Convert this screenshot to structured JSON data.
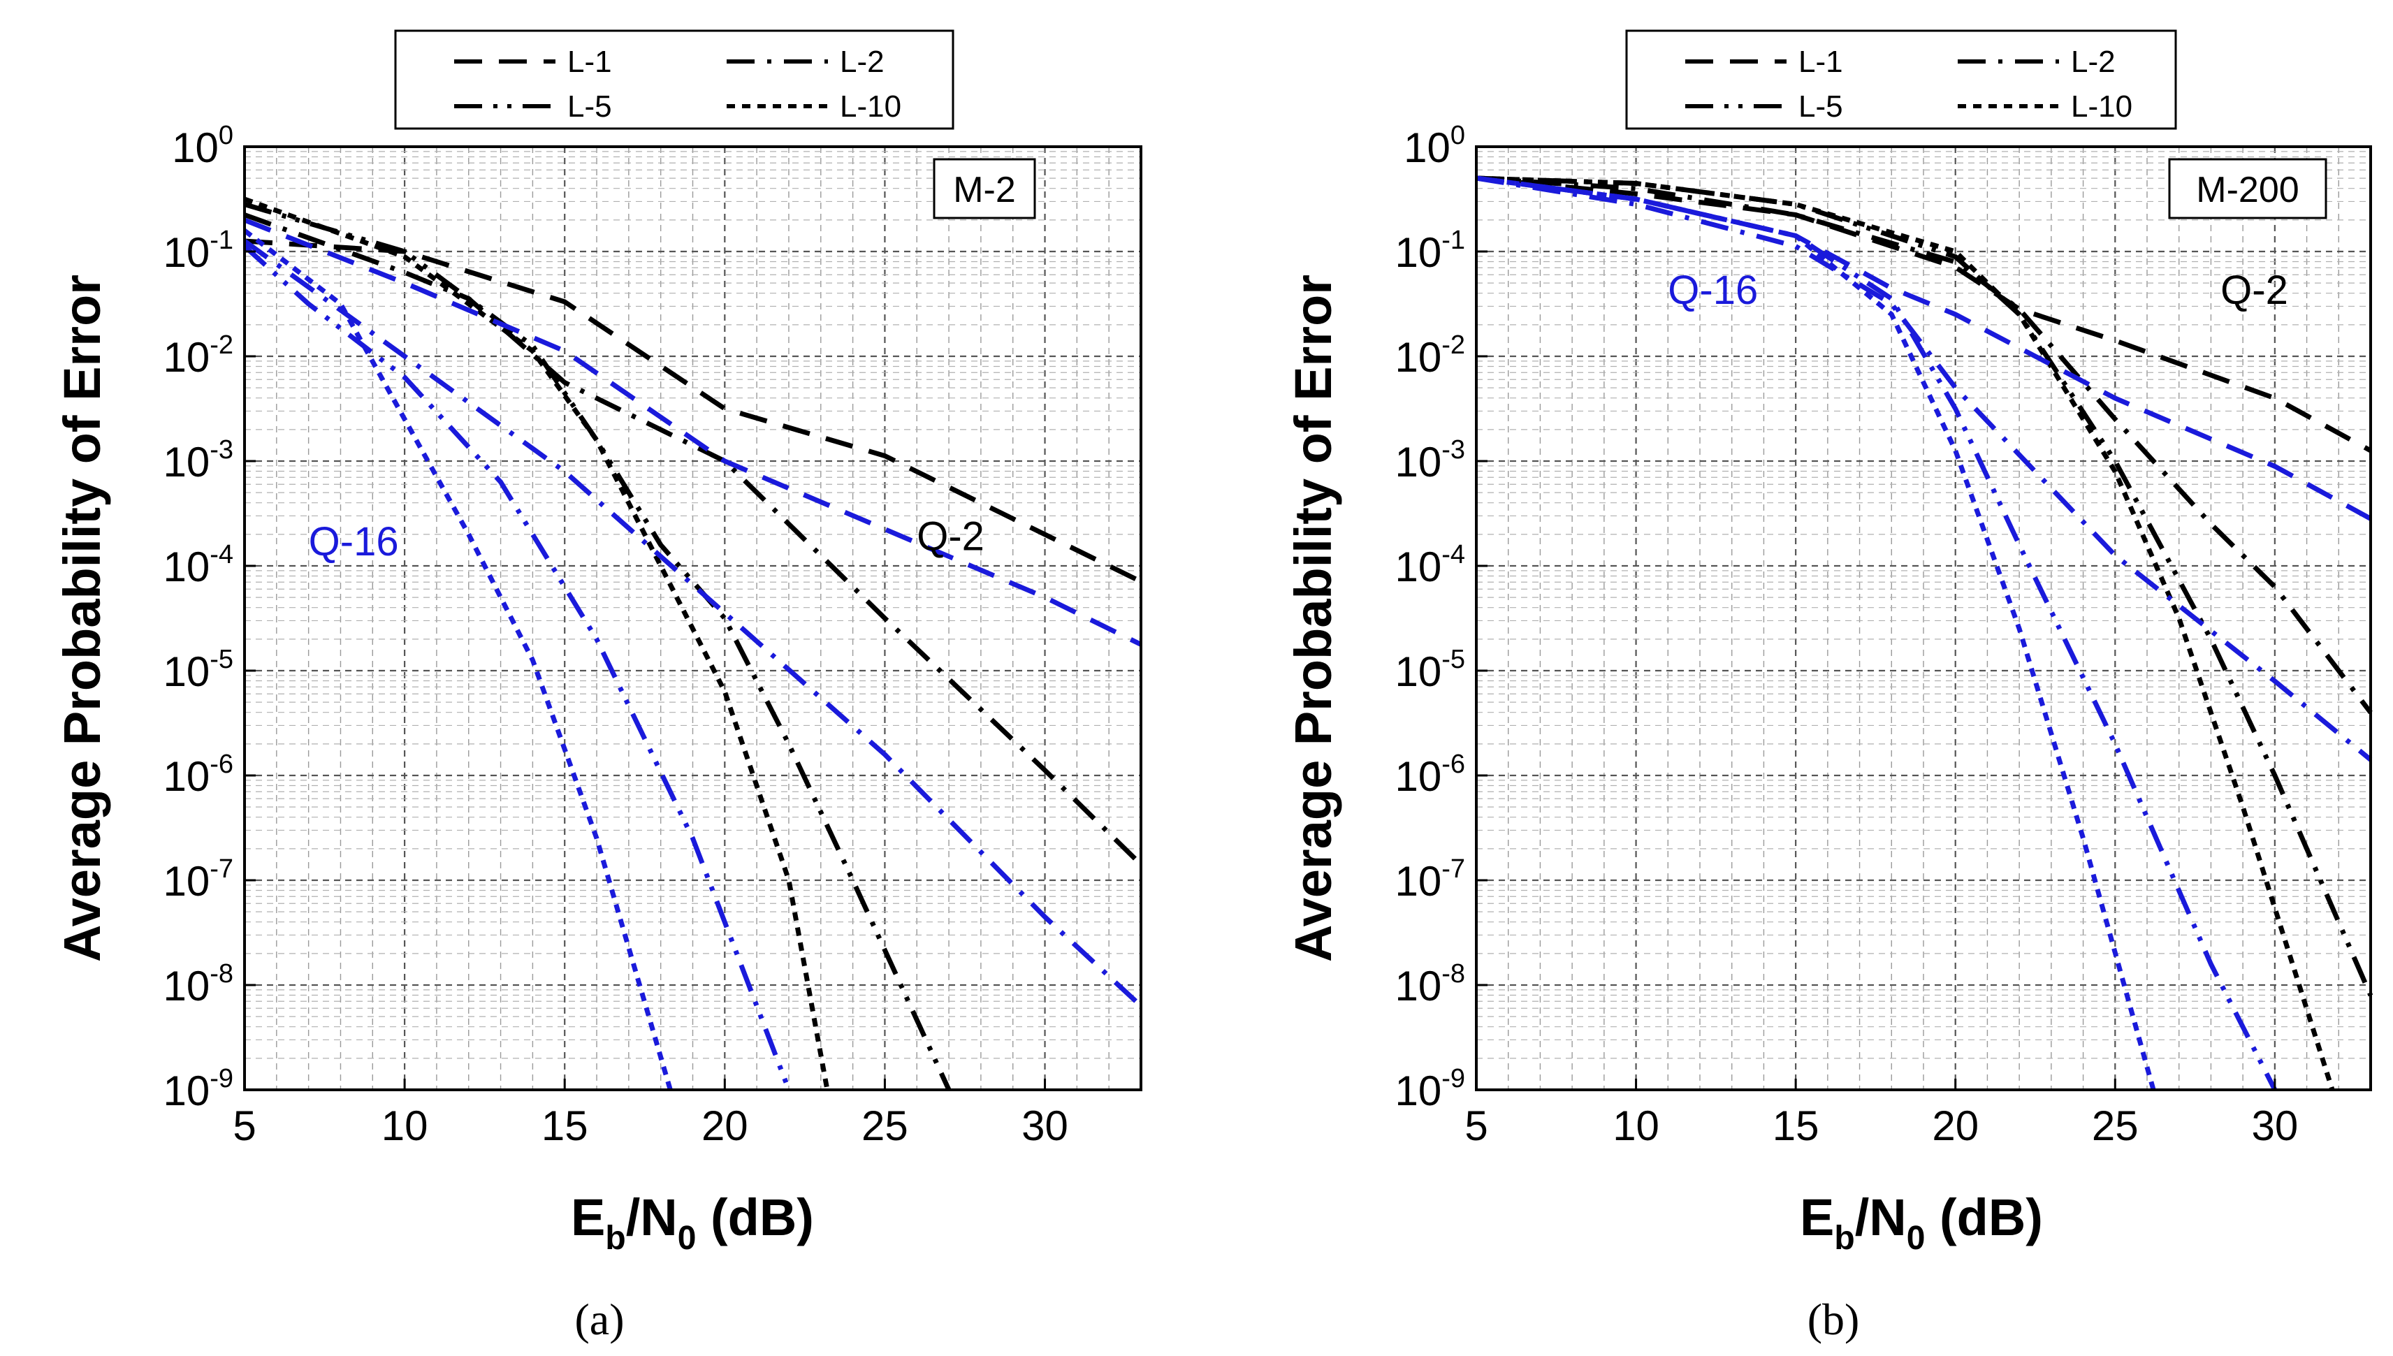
{
  "chart_data": [
    {
      "type": "line",
      "panel_caption": "(a)",
      "box_label": "M-2",
      "xlabel_main": "E",
      "xlabel_sub1": "b",
      "xlabel_mid": "/N",
      "xlabel_sub2": "0",
      "xlabel_tail": " (dB)",
      "ylabel": "Average Probability of Error",
      "xlim": [
        5,
        33
      ],
      "ylim_exp": [
        -9,
        0
      ],
      "x_ticks": [
        "5",
        "10",
        "15",
        "20",
        "25",
        "30"
      ],
      "y_tick_base": "10",
      "y_tick_exps": [
        "0",
        "-1",
        "-2",
        "-3",
        "-4",
        "-5",
        "-6",
        "-7",
        "-8",
        "-9"
      ],
      "legend": [
        {
          "label": "L-1",
          "style": "dash"
        },
        {
          "label": "L-2",
          "style": "dashdot"
        },
        {
          "label": "L-5",
          "style": "dashdotdot"
        },
        {
          "label": "L-10",
          "style": "dot"
        }
      ],
      "annotations": [
        {
          "text": "Q-16",
          "color": "#1a1adb",
          "x": 7.0,
          "y_exp": -3.9
        },
        {
          "text": "Q-2",
          "color": "#000000",
          "x": 26.0,
          "y_exp": -3.85
        }
      ],
      "series": [
        {
          "name": "Q-2 L-1",
          "color": "#000000",
          "style": "dash",
          "x": [
            5,
            10,
            15,
            20,
            25,
            30,
            33
          ],
          "y_exp": [
            -0.9,
            -1.0,
            -1.48,
            -2.5,
            -2.95,
            -3.7,
            -4.15
          ]
        },
        {
          "name": "Q-2 L-2",
          "color": "#000000",
          "style": "dashdot",
          "x": [
            5,
            10,
            12,
            15,
            20,
            25,
            30,
            33
          ],
          "y_exp": [
            -0.65,
            -1.2,
            -1.45,
            -2.25,
            -3.0,
            -4.5,
            -5.95,
            -6.85
          ]
        },
        {
          "name": "Q-2 L-5",
          "color": "#000000",
          "style": "dashdotdot",
          "x": [
            5,
            10,
            14,
            16,
            18,
            20,
            22,
            24,
            27
          ],
          "y_exp": [
            -0.55,
            -1.0,
            -1.9,
            -2.8,
            -3.8,
            -4.5,
            -5.7,
            -7.0,
            -9.0
          ]
        },
        {
          "name": "Q-2 L-10",
          "color": "#000000",
          "style": "dot",
          "x": [
            5,
            10,
            14,
            16,
            18,
            20,
            22,
            23.2
          ],
          "y_exp": [
            -0.5,
            -1.05,
            -1.95,
            -2.8,
            -4.0,
            -5.2,
            -7.0,
            -9.0
          ]
        },
        {
          "name": "Q-16 L-1",
          "color": "#1a1adb",
          "style": "dash",
          "x": [
            5,
            10,
            15,
            20,
            25,
            30,
            33
          ],
          "y_exp": [
            -0.7,
            -1.3,
            -1.95,
            -3.0,
            -3.65,
            -4.3,
            -4.75
          ]
        },
        {
          "name": "Q-16 L-2",
          "color": "#1a1adb",
          "style": "dashdot",
          "x": [
            5,
            10,
            15,
            20,
            25,
            30,
            33
          ],
          "y_exp": [
            -0.9,
            -2.0,
            -3.1,
            -4.45,
            -5.8,
            -7.35,
            -8.2
          ]
        },
        {
          "name": "Q-16 L-5",
          "color": "#1a1adb",
          "style": "dashdotdot",
          "x": [
            5,
            7,
            10,
            13,
            16,
            19,
            22
          ],
          "y_exp": [
            -0.95,
            -1.5,
            -2.2,
            -3.2,
            -4.7,
            -6.6,
            -9.0
          ]
        },
        {
          "name": "Q-16 L-10",
          "color": "#1a1adb",
          "style": "dot",
          "x": [
            5,
            8,
            10,
            12,
            14,
            16,
            18.3
          ],
          "y_exp": [
            -0.8,
            -1.5,
            -2.6,
            -3.7,
            -4.9,
            -6.6,
            -9.0
          ]
        }
      ]
    },
    {
      "type": "line",
      "panel_caption": "(b)",
      "box_label": "M-200",
      "xlabel_main": "E",
      "xlabel_sub1": "b",
      "xlabel_mid": "/N",
      "xlabel_sub2": "0",
      "xlabel_tail": " (dB)",
      "ylabel": "Average Probability of Error",
      "xlim": [
        5,
        33
      ],
      "ylim_exp": [
        -9,
        0
      ],
      "x_ticks": [
        "5",
        "10",
        "15",
        "20",
        "25",
        "30"
      ],
      "y_tick_base": "10",
      "y_tick_exps": [
        "0",
        "-1",
        "-2",
        "-3",
        "-4",
        "-5",
        "-6",
        "-7",
        "-8",
        "-9"
      ],
      "legend": [
        {
          "label": "L-1",
          "style": "dash"
        },
        {
          "label": "L-2",
          "style": "dashdot"
        },
        {
          "label": "L-5",
          "style": "dashdotdot"
        },
        {
          "label": "L-10",
          "style": "dot"
        }
      ],
      "annotations": [
        {
          "text": "Q-16",
          "color": "#1a1adb",
          "x": 11.0,
          "y_exp": -1.5
        },
        {
          "text": "Q-2",
          "color": "#000000",
          "x": 28.3,
          "y_exp": -1.5
        }
      ],
      "series": [
        {
          "name": "Q-2 L-1",
          "color": "#000000",
          "style": "dash",
          "x": [
            5,
            10,
            15,
            20,
            22,
            25,
            30,
            33
          ],
          "y_exp": [
            -0.3,
            -0.45,
            -0.65,
            -1.15,
            -1.55,
            -1.85,
            -2.4,
            -2.9
          ]
        },
        {
          "name": "Q-2 L-2",
          "color": "#000000",
          "style": "dashdot",
          "x": [
            5,
            10,
            15,
            20,
            22,
            25,
            28,
            30,
            33
          ],
          "y_exp": [
            -0.3,
            -0.4,
            -0.65,
            -1.1,
            -1.55,
            -2.6,
            -3.6,
            -4.2,
            -5.4
          ]
        },
        {
          "name": "Q-2 L-5",
          "color": "#000000",
          "style": "dashdotdot",
          "x": [
            5,
            10,
            15,
            20,
            22,
            25,
            28,
            30,
            33
          ],
          "y_exp": [
            -0.3,
            -0.35,
            -0.55,
            -1.05,
            -1.6,
            -3.0,
            -4.7,
            -6.0,
            -8.1
          ]
        },
        {
          "name": "Q-2 L-10",
          "color": "#000000",
          "style": "dot",
          "x": [
            5,
            10,
            15,
            20,
            22,
            25,
            27,
            29,
            31.8
          ],
          "y_exp": [
            -0.3,
            -0.35,
            -0.55,
            -1.0,
            -1.6,
            -3.1,
            -4.5,
            -6.3,
            -9.0
          ]
        },
        {
          "name": "Q-16 L-1",
          "color": "#1a1adb",
          "style": "dash",
          "x": [
            5,
            10,
            15,
            18,
            20,
            25,
            30,
            33
          ],
          "y_exp": [
            -0.3,
            -0.5,
            -0.85,
            -1.35,
            -1.6,
            -2.4,
            -3.05,
            -3.55
          ]
        },
        {
          "name": "Q-16 L-2",
          "color": "#1a1adb",
          "style": "dashdot",
          "x": [
            5,
            10,
            15,
            18,
            20,
            25,
            30,
            33
          ],
          "y_exp": [
            -0.3,
            -0.55,
            -0.95,
            -1.5,
            -2.3,
            -3.9,
            -5.1,
            -5.85
          ]
        },
        {
          "name": "Q-16 L-5",
          "color": "#1a1adb",
          "style": "dashdotdot",
          "x": [
            5,
            10,
            15,
            18,
            20,
            22,
            25,
            28,
            30
          ],
          "y_exp": [
            -0.3,
            -0.5,
            -0.85,
            -1.45,
            -2.5,
            -3.8,
            -5.7,
            -7.8,
            -9.0
          ]
        },
        {
          "name": "Q-16 L-10",
          "color": "#1a1adb",
          "style": "dot",
          "x": [
            5,
            10,
            15,
            18,
            20,
            22,
            24,
            26.2
          ],
          "y_exp": [
            -0.3,
            -0.5,
            -0.85,
            -1.6,
            -2.9,
            -4.6,
            -6.6,
            -9.0
          ]
        }
      ]
    }
  ]
}
